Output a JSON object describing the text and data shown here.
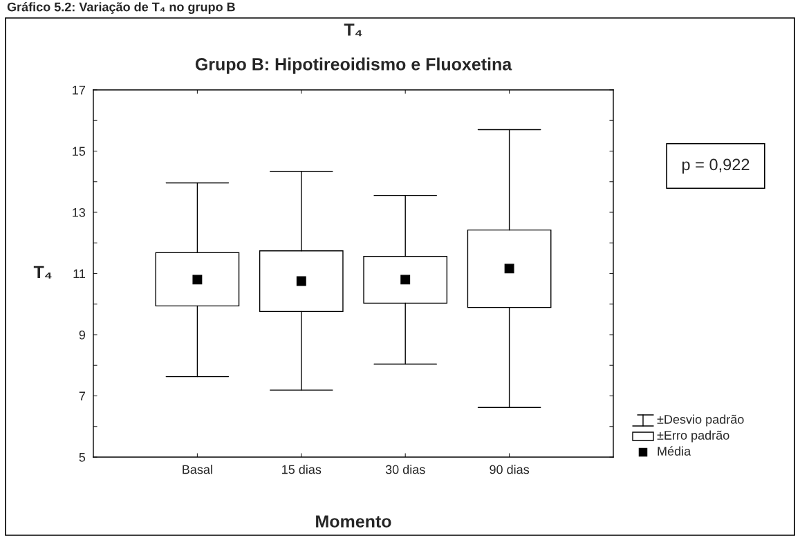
{
  "chart_data": {
    "type": "box",
    "title": "T₄",
    "subtitle": "Grupo B: Hipotireoidismo e Fluoxetina",
    "xlabel": "Momento",
    "ylabel": "T₄",
    "annotations": [
      "Gráfico 5.2: Variação de T₄ no grupo B",
      "p = 0,922",
      "±Desvio padrão",
      "±Erro padrão",
      "Média"
    ],
    "categories": [
      "Basal",
      "15 dias",
      "30 dias",
      "90 dias"
    ],
    "boxes": [
      {
        "low": 7.63,
        "q1": 9.94,
        "q3": 11.68,
        "high": 13.96,
        "mean": 10.8
      },
      {
        "low": 7.19,
        "q1": 9.76,
        "q3": 11.74,
        "high": 14.34,
        "mean": 10.75
      },
      {
        "low": 8.04,
        "q1": 10.03,
        "q3": 11.56,
        "high": 13.55,
        "mean": 10.8
      },
      {
        "low": 6.62,
        "q1": 9.89,
        "q3": 12.42,
        "high": 15.7,
        "mean": 11.16
      }
    ],
    "ylim": [
      5,
      17
    ],
    "yticks": [
      5,
      {
        "value": 6,
        "label": null
      },
      7,
      {
        "value": 8,
        "label": null
      },
      9,
      {
        "value": 10,
        "label": null
      },
      11,
      {
        "value": 12,
        "label": null
      },
      13,
      {
        "value": 14,
        "label": null
      },
      15,
      {
        "value": 16,
        "label": null
      },
      17
    ],
    "marker": "square"
  }
}
